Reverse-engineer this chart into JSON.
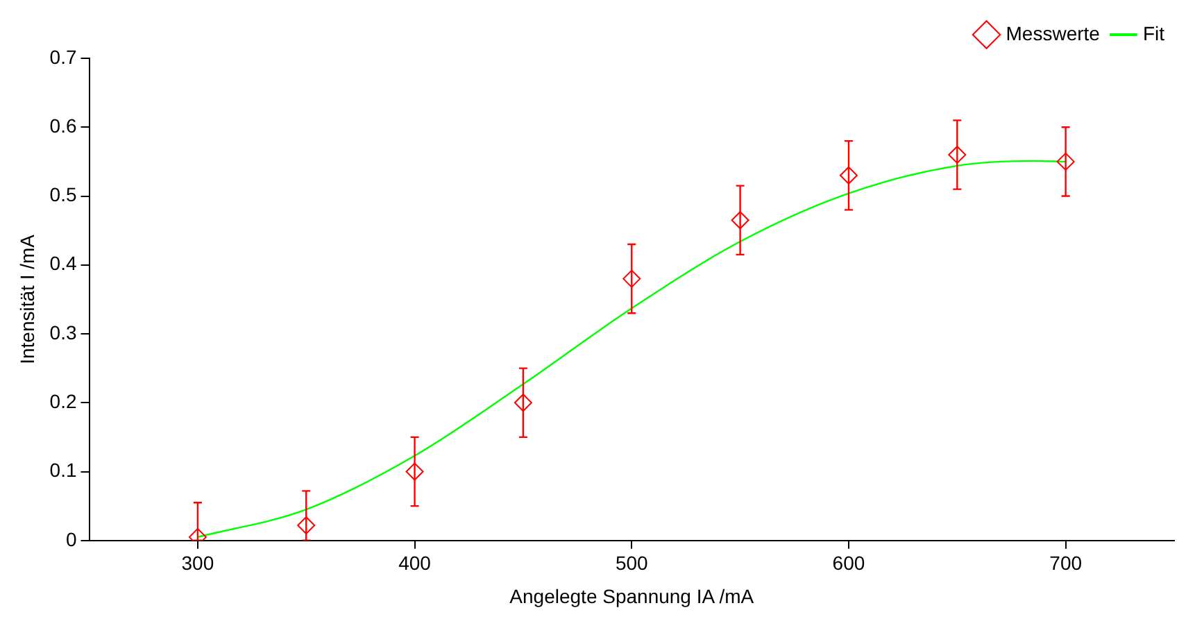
{
  "chart_data": {
    "type": "scatter",
    "xlabel": "Angelegte Spannung IA /mA",
    "ylabel": "Intensität I /mA",
    "xlim": [
      250,
      750
    ],
    "xticks": [
      300,
      400,
      500,
      600,
      700
    ],
    "ylim": [
      0,
      0.7
    ],
    "yticks": [
      0,
      0.1,
      0.2,
      0.3,
      0.4,
      0.5,
      0.6,
      0.7
    ],
    "grid": false,
    "legend": "top right",
    "series": [
      {
        "name": "Messwerte",
        "color": "#ff0000",
        "marker": "diamond",
        "x": [
          300,
          350,
          400,
          450,
          500,
          550,
          600,
          650,
          700
        ],
        "values": [
          0.005,
          0.022,
          0.1,
          0.2,
          0.38,
          0.465,
          0.53,
          0.56,
          0.55
        ],
        "errors": [
          [
            0,
            0.055
          ],
          [
            0,
            0.072
          ],
          0.05,
          0.05,
          0.05,
          0.05,
          0.05,
          0.05,
          0.05
        ]
      },
      {
        "name": "Fit",
        "type": "line",
        "color": "#00ff00",
        "marker": "none",
        "line_style": "solid",
        "x": [
          300,
          350,
          400,
          450,
          500,
          550,
          600,
          650,
          685,
          700
        ],
        "values": [
          0.005,
          0.045,
          0.123,
          0.227,
          0.337,
          0.434,
          0.504,
          0.544,
          0.551,
          0.55
        ]
      }
    ]
  }
}
